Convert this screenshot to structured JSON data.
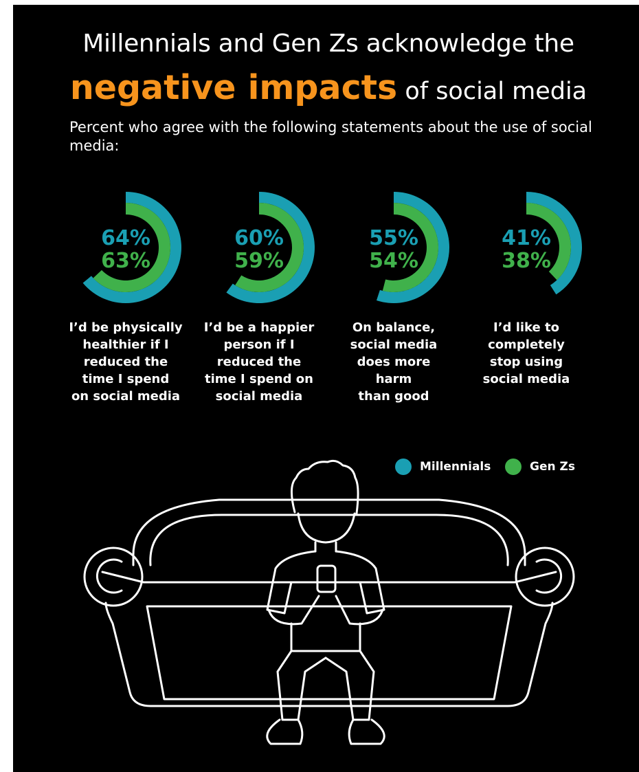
{
  "title": {
    "line1": "Millennials and Gen Zs acknowledge the",
    "highlight": "negative impacts",
    "rest": " of social media"
  },
  "subtitle": "Percent who agree with the following statements about the use of social media:",
  "colors": {
    "background": "#000000",
    "accent": "#f7941d",
    "millennials": "#1a9fb3",
    "genz": "#40b14b",
    "text": "#ffffff"
  },
  "chart_data": {
    "type": "donut",
    "series": [
      {
        "name": "Millennials",
        "values": [
          64,
          60,
          55,
          41
        ]
      },
      {
        "name": "Gen Zs",
        "values": [
          63,
          59,
          54,
          38
        ]
      }
    ],
    "categories": [
      "I’d be physically healthier if I reduced the time I spend on social media",
      "I’d be a happier person if I reduced the time I spend on social media",
      "On balance, social media does more harm than good",
      "I’d like to completely stop using social media"
    ],
    "data_labels": [
      {
        "millennials": "64%",
        "genz": "63%"
      },
      {
        "millennials": "60%",
        "genz": "59%"
      },
      {
        "millennials": "55%",
        "genz": "54%"
      },
      {
        "millennials": "41%",
        "genz": "38%"
      }
    ],
    "statement_lines": [
      "I’d be physically\nhealthier if I\nreduced the\ntime I spend\non social media",
      "I’d be a happier\nperson if I\nreduced the\ntime I spend on\nsocial media",
      "On balance,\nsocial media\ndoes more\nharm\nthan good",
      "I’d like to\ncompletely\nstop using\nsocial media"
    ],
    "unit": "%",
    "ylim": [
      0,
      100
    ],
    "legend_position": "bottom-right"
  },
  "legend": {
    "items": [
      {
        "label": "Millennials",
        "color": "#1a9fb3"
      },
      {
        "label": "Gen Zs",
        "color": "#40b14b"
      }
    ]
  },
  "illustration": {
    "icon": "person-on-couch-with-phone-icon"
  }
}
